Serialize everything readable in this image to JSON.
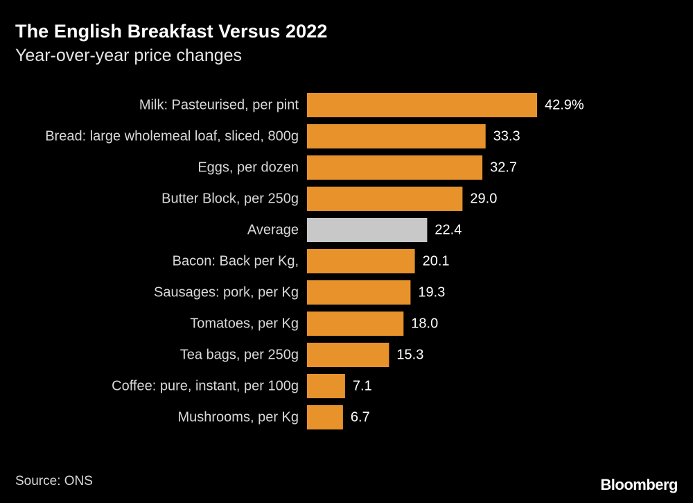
{
  "chart_data": {
    "type": "bar",
    "orientation": "horizontal",
    "title": "The English Breakfast Versus 2022",
    "subtitle": "Year-over-year price changes",
    "xlim": [
      0,
      42.9
    ],
    "categories": [
      "Milk: Pasteurised, per pint",
      "Bread: large wholemeal loaf, sliced, 800g",
      "Eggs, per dozen",
      "Butter Block, per 250g",
      "Average",
      "Bacon: Back per Kg,",
      "Sausages: pork, per Kg",
      "Tomatoes, per Kg",
      "Tea bags, per 250g",
      "Coffee: pure, instant, per 100g",
      "Mushrooms, per Kg"
    ],
    "values": [
      42.9,
      33.3,
      32.7,
      29.0,
      22.4,
      20.1,
      19.3,
      18.0,
      15.3,
      7.1,
      6.7
    ],
    "value_labels": [
      "42.9%",
      "33.3",
      "32.7",
      "29.0",
      "22.4",
      "20.1",
      "19.3",
      "18.0",
      "15.3",
      "7.1",
      "6.7"
    ],
    "highlight_category": "Average",
    "colors": {
      "bar": "#e8922b",
      "highlight": "#c8c8c8",
      "background": "#000000"
    },
    "source": "Source: ONS",
    "brand": "Bloomberg"
  }
}
